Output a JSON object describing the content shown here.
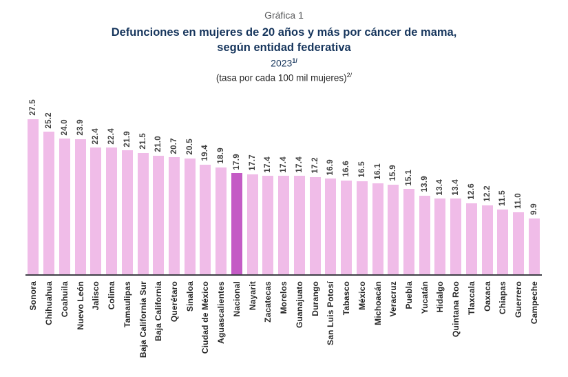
{
  "header": {
    "pretitle": "Gráfica 1",
    "title_line1": "Defunciones en mujeres de 20 años y más por cáncer de mama,",
    "title_line2": "según entidad federativa",
    "year": "2023",
    "year_superscript": "1/",
    "unit_note": "(tasa por cada 100 mil mujeres)",
    "unit_superscript": "2/"
  },
  "chart_data": {
    "type": "bar",
    "title": "Defunciones en mujeres de 20 años y más por cáncer de mama, según entidad federativa, 2023",
    "ylabel": "tasa por cada 100 mil mujeres",
    "xlabel": "entidad federativa",
    "ylim": [
      0,
      30
    ],
    "grid": false,
    "legend": false,
    "value_labels": "rotated 90deg above each bar, one decimal",
    "category_labels": "rotated 90deg below axis, top-aligned",
    "categories": [
      "Sonora",
      "Chihuahua",
      "Coahuila",
      "Nuevo León",
      "Jalisco",
      "Colima",
      "Tamaulipas",
      "Baja California Sur",
      "Baja California",
      "Querétaro",
      "Sinaloa",
      "Ciudad de México",
      "Aguascalientes",
      "Nacional",
      "Nayarit",
      "Zacatecas",
      "Morelos",
      "Guanajuato",
      "Durango",
      "San Luis Potosí",
      "Tabasco",
      "México",
      "Michoacán",
      "Veracruz",
      "Puebla",
      "Yucatán",
      "Hidalgo",
      "Quintana Roo",
      "Tlaxcala",
      "Oaxaca",
      "Chiapas",
      "Guerrero",
      "Campeche"
    ],
    "values": [
      27.5,
      25.2,
      24.0,
      23.9,
      22.4,
      22.4,
      21.9,
      21.5,
      21.0,
      20.7,
      20.5,
      19.4,
      18.9,
      17.9,
      17.7,
      17.4,
      17.4,
      17.4,
      17.2,
      16.9,
      16.6,
      16.5,
      16.1,
      15.9,
      15.1,
      13.9,
      13.4,
      13.4,
      12.6,
      12.2,
      11.5,
      11.0,
      9.9
    ],
    "highlight_category": "Nacional",
    "colors": {
      "bar": "#f0bce8",
      "highlight_bar": "#c45bc5",
      "value_label": "#3f3f3f",
      "category_label": "#262626",
      "axis_line": "#3f3f46",
      "title": "#17365d",
      "pretitle": "#58595b"
    }
  }
}
